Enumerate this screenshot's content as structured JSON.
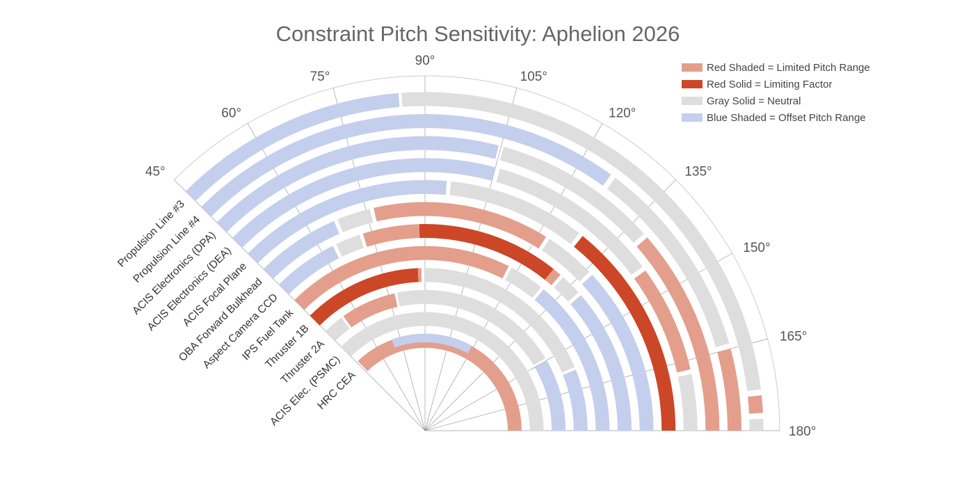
{
  "chart_data": {
    "type": "polar-bar",
    "title": "Constraint Pitch Sensitivity: Aphelion 2026",
    "angle_range_deg": [
      45,
      180
    ],
    "angle_ticks": [
      "45°",
      "60°",
      "75°",
      "90°",
      "105°",
      "120°",
      "135°",
      "150°",
      "165°",
      "180°"
    ],
    "angle_tick_values": [
      45,
      60,
      75,
      90,
      105,
      120,
      135,
      150,
      165,
      180
    ],
    "legend_position": "top-right",
    "legend": [
      {
        "key": "red_shaded",
        "label": "Red Shaded = Limited Pitch Range",
        "color": "#e39f8c"
      },
      {
        "key": "red_solid",
        "label": "Red Solid = Limiting Factor",
        "color": "#cc4628"
      },
      {
        "key": "gray",
        "label": "Gray Solid = Neutral",
        "color": "#dedede"
      },
      {
        "key": "blue",
        "label": "Blue Shaded = Offset Pitch Range",
        "color": "#c3cfec"
      }
    ],
    "rings_outer_to_inner": [
      {
        "name": "Propulsion Line #3",
        "segments": [
          {
            "from": 45,
            "to": 85.5,
            "cat": "blue"
          },
          {
            "from": 86,
            "to": 173,
            "cat": "gray"
          },
          {
            "from": 174,
            "to": 177,
            "cat": "red_shaded"
          },
          {
            "from": 178,
            "to": 180,
            "cat": "gray"
          }
        ]
      },
      {
        "name": "Propulsion Line #4",
        "segments": [
          {
            "from": 45,
            "to": 126,
            "cat": "blue"
          },
          {
            "from": 127,
            "to": 164,
            "cat": "gray"
          },
          {
            "from": 165,
            "to": 180,
            "cat": "red_shaded"
          }
        ]
      },
      {
        "name": "ACIS Electronics (DPA)",
        "segments": [
          {
            "from": 45,
            "to": 104.5,
            "cat": "blue"
          },
          {
            "from": 105.5,
            "to": 138,
            "cat": "gray"
          },
          {
            "from": 139,
            "to": 180,
            "cat": "red_shaded"
          }
        ]
      },
      {
        "name": "ACIS Electronics (DEA)",
        "segments": [
          {
            "from": 45,
            "to": 105,
            "cat": "blue"
          },
          {
            "from": 106,
            "to": 143,
            "cat": "gray"
          },
          {
            "from": 144,
            "to": 167,
            "cat": "red_shaded"
          },
          {
            "from": 168,
            "to": 180,
            "cat": "gray"
          }
        ]
      },
      {
        "name": "ACIS Focal Plane",
        "segments": [
          {
            "from": 45,
            "to": 95,
            "cat": "blue"
          },
          {
            "from": 96,
            "to": 128,
            "cat": "gray"
          },
          {
            "from": 129,
            "to": 180,
            "cat": "red_solid"
          }
        ]
      },
      {
        "name": "OBA Forward Bulkhead",
        "segments": [
          {
            "from": 45,
            "to": 66.5,
            "cat": "blue"
          },
          {
            "from": 67.5,
            "to": 76,
            "cat": "gray"
          },
          {
            "from": 77,
            "to": 122,
            "cat": "red_shaded"
          },
          {
            "from": 123,
            "to": 136,
            "cat": "gray"
          },
          {
            "from": 137,
            "to": 180,
            "cat": "blue"
          }
        ]
      },
      {
        "name": "Aspect Camera CCD",
        "segments": [
          {
            "from": 45,
            "to": 63.5,
            "cat": "blue"
          },
          {
            "from": 64.5,
            "to": 71.5,
            "cat": "gray"
          },
          {
            "from": 72.5,
            "to": 88.4,
            "cat": "red_shaded"
          },
          {
            "from": 88.4,
            "to": 128.5,
            "cat": "red_solid"
          },
          {
            "from": 128.5,
            "to": 131,
            "cat": "red_shaded"
          },
          {
            "from": 132,
            "to": 138,
            "cat": "gray"
          },
          {
            "from": 139,
            "to": 180,
            "cat": "blue"
          }
        ]
      },
      {
        "name": "IPS Fuel Tank",
        "segments": [
          {
            "from": 45,
            "to": 117,
            "cat": "red_shaded"
          },
          {
            "from": 118,
            "to": 129,
            "cat": "gray"
          },
          {
            "from": 130,
            "to": 180,
            "cat": "blue"
          }
        ]
      },
      {
        "name": "Thruster 1B",
        "segments": [
          {
            "from": 45,
            "to": 87.5,
            "cat": "red_solid"
          },
          {
            "from": 87.5,
            "to": 88.7,
            "cat": "red_shaded"
          },
          {
            "from": 89.7,
            "to": 157,
            "cat": "gray"
          },
          {
            "from": 158,
            "to": 180,
            "cat": "blue"
          }
        ]
      },
      {
        "name": "Thruster 2A",
        "segments": [
          {
            "from": 45,
            "to": 53.5,
            "cat": "gray"
          },
          {
            "from": 54.5,
            "to": 77.5,
            "cat": "red_shaded"
          },
          {
            "from": 78.5,
            "to": 149,
            "cat": "gray"
          },
          {
            "from": 150,
            "to": 180,
            "cat": "blue"
          }
        ]
      },
      {
        "name": "ACIS Elec. (PSMC)",
        "segments": [
          {
            "from": 45,
            "to": 180,
            "cat": "gray"
          }
        ]
      },
      {
        "name": "HRC CEA",
        "segments": [
          {
            "from": 46,
            "to": 180,
            "cat": "red_shaded"
          },
          {
            "from": 70,
            "to": 119,
            "cat": "blue",
            "overlay": "outer"
          }
        ]
      }
    ]
  }
}
